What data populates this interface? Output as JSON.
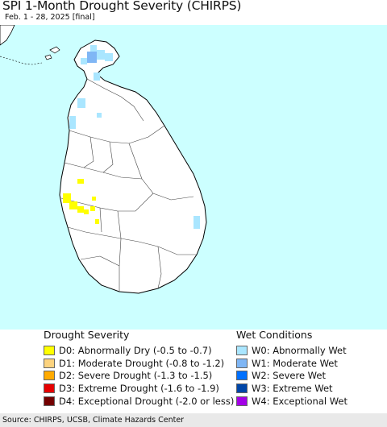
{
  "map": {
    "title": "SPI 1-Month Drought Severity (CHIRPS)",
    "subtitle": "Feb. 1 - 28, 2025 [final]",
    "colors": {
      "ocean": "#ccffff",
      "land": "#ffffff",
      "boundary": "#444444",
      "coast": "#000000"
    }
  },
  "legend": {
    "drought": {
      "heading": "Drought Severity",
      "items": [
        {
          "label": "D0: Abnormally Dry (-0.5 to -0.7)",
          "color": "#ffff00"
        },
        {
          "label": "D1: Moderate Drought (-0.8 to -1.2)",
          "color": "#fcd37f"
        },
        {
          "label": "D2: Severe Drought (-1.3 to -1.5)",
          "color": "#ffaa00"
        },
        {
          "label": "D3: Extreme Drought (-1.6 to -1.9)",
          "color": "#e60000"
        },
        {
          "label": "D4: Exceptional Drought (-2.0 or less)",
          "color": "#730000"
        }
      ]
    },
    "wet": {
      "heading": "Wet Conditions",
      "items": [
        {
          "label": "W0: Abnormally Wet",
          "color": "#aae6ff"
        },
        {
          "label": "W1: Moderate Wet",
          "color": "#7fb6f5"
        },
        {
          "label": "W2: Severe Wet",
          "color": "#0070ff"
        },
        {
          "label": "W3: Extreme Wet",
          "color": "#0046a8"
        },
        {
          "label": "W4: Exceptional Wet",
          "color": "#a300e6"
        }
      ]
    }
  },
  "footer": {
    "source": "Source: CHIRPS, UCSB, Climate Hazards Center"
  }
}
